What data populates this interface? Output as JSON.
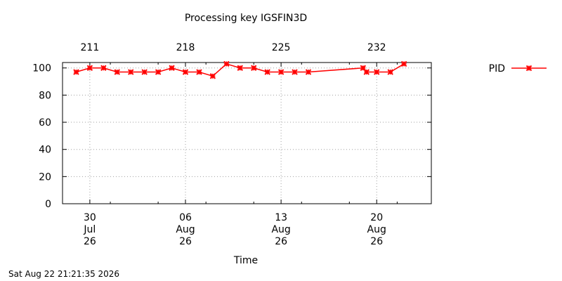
{
  "chart_data": {
    "type": "line",
    "title": "Processing key IGSFIN3D",
    "xlabel": "Time",
    "ylabel": "",
    "x_range": [
      "2026-07-28",
      "2026-08-24"
    ],
    "ylim": [
      0,
      104
    ],
    "yticks": [
      0,
      20,
      40,
      60,
      80,
      100
    ],
    "grid": true,
    "legend_position": "right",
    "xticks_bottom": [
      {
        "date": "2026-07-30",
        "day": "30",
        "month": "Jul",
        "year": "26"
      },
      {
        "date": "2026-08-06",
        "day": "06",
        "month": "Aug",
        "year": "26"
      },
      {
        "date": "2026-08-13",
        "day": "13",
        "month": "Aug",
        "year": "26"
      },
      {
        "date": "2026-08-20",
        "day": "20",
        "month": "Aug",
        "year": "26"
      }
    ],
    "xticks_top": [
      {
        "date": "2026-07-30",
        "label": "211"
      },
      {
        "date": "2026-08-06",
        "label": "218"
      },
      {
        "date": "2026-08-13",
        "label": "225"
      },
      {
        "date": "2026-08-20",
        "label": "232"
      }
    ],
    "series": [
      {
        "name": "PID",
        "color": "#ff0000",
        "x": [
          "2026-07-29",
          "2026-07-30",
          "2026-07-31",
          "2026-08-01",
          "2026-08-02",
          "2026-08-03",
          "2026-08-04",
          "2026-08-05",
          "2026-08-06",
          "2026-08-07",
          "2026-08-08",
          "2026-08-09",
          "2026-08-10",
          "2026-08-11",
          "2026-08-12",
          "2026-08-13",
          "2026-08-14",
          "2026-08-15",
          "2026-08-19",
          "2026-08-19",
          "2026-08-20",
          "2026-08-21",
          "2026-08-22"
        ],
        "y": [
          97,
          100,
          100,
          97,
          97,
          97,
          97,
          100,
          97,
          97,
          94,
          103,
          100,
          100,
          97,
          97,
          97,
          97,
          100,
          97,
          97,
          97,
          103
        ]
      }
    ]
  },
  "footer": {
    "timestamp": "Sat Aug 22 21:21:35 2026"
  }
}
